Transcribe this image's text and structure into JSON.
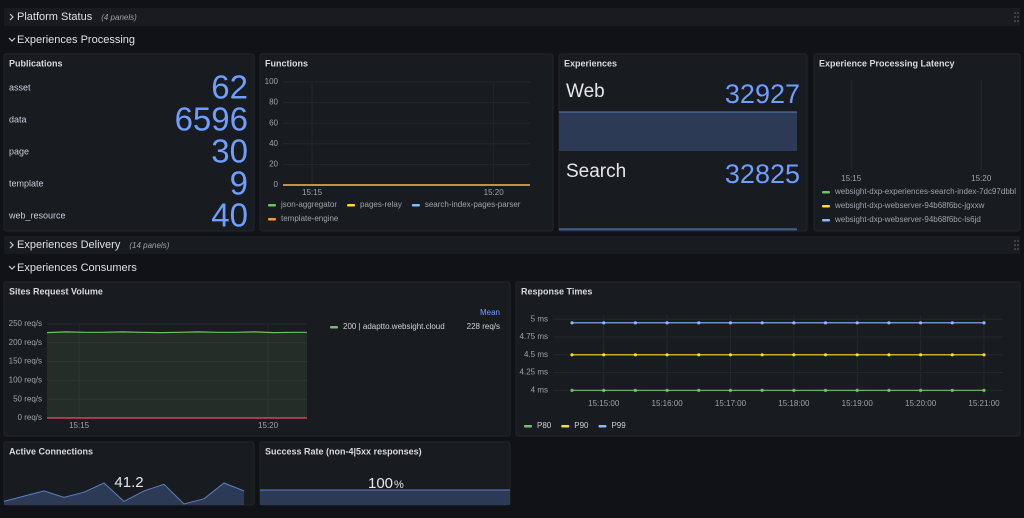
{
  "rows": [
    {
      "title": "Platform Status",
      "note": "(4 panels)"
    },
    {
      "title": "Experiences Processing"
    },
    {
      "title": "Experiences Delivery",
      "note": "(14 panels)"
    },
    {
      "title": "Experiences Consumers"
    }
  ],
  "publications": {
    "title": "Publications",
    "items": [
      {
        "label": "asset",
        "value": 62
      },
      {
        "label": "data",
        "value": 6596
      },
      {
        "label": "page",
        "value": 30
      },
      {
        "label": "template",
        "value": 9
      },
      {
        "label": "web_resource",
        "value": 40
      }
    ]
  },
  "functions": {
    "title": "Functions",
    "type": "line",
    "xlim": [
      14.2,
      21.0
    ],
    "xticks": [
      {
        "value": 15,
        "label": "15:15"
      },
      {
        "value": 20,
        "label": "15:20"
      }
    ],
    "ylim": [
      0,
      100
    ],
    "yticks": [
      0,
      20,
      40,
      60,
      80,
      100
    ],
    "series": [
      {
        "name": "json-aggregator",
        "color": "#73bf69",
        "x": [
          14.2,
          21.0
        ],
        "values": [
          0,
          0
        ]
      },
      {
        "name": "pages-relay",
        "color": "#fade2a",
        "x": [
          14.2,
          21.0
        ],
        "values": [
          0,
          0
        ]
      },
      {
        "name": "search-index-pages-parser",
        "color": "#8ab8ff",
        "x": [
          14.2,
          21.0
        ],
        "values": [
          0,
          0
        ]
      },
      {
        "name": "template-engine",
        "color": "#ff9830",
        "x": [
          14.2,
          21.0
        ],
        "values": [
          0,
          0
        ]
      }
    ]
  },
  "experiences": {
    "title": "Experiences",
    "items": [
      {
        "label": "Web",
        "value": 32927
      },
      {
        "label": "Search",
        "value": 32825
      }
    ]
  },
  "latency": {
    "title": "Experience Processing Latency",
    "xlim": [
      13.8,
      21.3
    ],
    "xticks": [
      {
        "value": 15,
        "label": "15:15"
      },
      {
        "value": 20,
        "label": "15:20"
      }
    ],
    "series": [
      {
        "name": "websight-dxp-experiences-search-index-7dc97dbbl",
        "color": "#73bf69"
      },
      {
        "name": "websight-dxp-webserver-94b68f6bc-jgxxw",
        "color": "#fade2a"
      },
      {
        "name": "websight-dxp-webserver-94b68f6bc-ls6jd",
        "color": "#8ab8ff"
      }
    ]
  },
  "sites": {
    "title": "Sites Request Volume",
    "type": "line",
    "xlim": [
      14.15,
      21.03
    ],
    "xticks": [
      {
        "value": 15,
        "label": "15:15"
      },
      {
        "value": 20,
        "label": "15:20"
      }
    ],
    "ylim": [
      0,
      250
    ],
    "yticks": [
      {
        "value": 0,
        "label": "0 req/s"
      },
      {
        "value": 50,
        "label": "50 req/s"
      },
      {
        "value": 100,
        "label": "100 req/s"
      },
      {
        "value": 150,
        "label": "150 req/s"
      },
      {
        "value": 200,
        "label": "200 req/s"
      },
      {
        "value": 250,
        "label": "250 req/s"
      }
    ],
    "threshold": 0,
    "legend_header": "Mean",
    "series": [
      {
        "name": "200 | adaptto.websight.cloud",
        "color": "#73bf69",
        "mean_label": "228 req/s",
        "x": [
          14.15,
          14.65,
          15.15,
          15.65,
          16.15,
          16.65,
          17.15,
          17.65,
          18.15,
          18.65,
          19.15,
          19.65,
          20.15,
          20.65,
          21.03
        ],
        "values": [
          227,
          229,
          228,
          228,
          229,
          228,
          227,
          228,
          229,
          228,
          228,
          229,
          227,
          228,
          228
        ]
      }
    ]
  },
  "response": {
    "title": "Response Times",
    "type": "line",
    "xlim": [
      14.2,
      21.3
    ],
    "xticks": [
      {
        "value": 15,
        "label": "15:15:00"
      },
      {
        "value": 16,
        "label": "15:16:00"
      },
      {
        "value": 17,
        "label": "15:17:00"
      },
      {
        "value": 18,
        "label": "15:18:00"
      },
      {
        "value": 19,
        "label": "15:19:00"
      },
      {
        "value": 20,
        "label": "15:20:00"
      },
      {
        "value": 21,
        "label": "15:21:00"
      }
    ],
    "ylim": [
      3.92,
      5.06
    ],
    "yticks": [
      {
        "value": 4,
        "label": "4 ms"
      },
      {
        "value": 4.25,
        "label": "4.25 ms"
      },
      {
        "value": 4.5,
        "label": "4.5 ms"
      },
      {
        "value": 4.75,
        "label": "4.75 ms"
      },
      {
        "value": 5,
        "label": "5 ms"
      }
    ],
    "series": [
      {
        "name": "P80",
        "color": "#73bf69",
        "x": [
          14.5,
          15,
          15.5,
          16,
          16.5,
          17,
          17.5,
          18,
          18.5,
          19,
          19.5,
          20,
          20.5,
          21
        ],
        "values": [
          4,
          4,
          4,
          4,
          4,
          4,
          4,
          4,
          4,
          4,
          4,
          4,
          4,
          4
        ]
      },
      {
        "name": "P90",
        "color": "#fade2a",
        "x": [
          14.5,
          15,
          15.5,
          16,
          16.5,
          17,
          17.5,
          18,
          18.5,
          19,
          19.5,
          20,
          20.5,
          21
        ],
        "values": [
          4.5,
          4.5,
          4.5,
          4.5,
          4.5,
          4.5,
          4.5,
          4.5,
          4.5,
          4.5,
          4.5,
          4.5,
          4.5,
          4.5
        ]
      },
      {
        "name": "P99",
        "color": "#8ab8ff",
        "x": [
          14.5,
          15,
          15.5,
          16,
          16.5,
          17,
          17.5,
          18,
          18.5,
          19,
          19.5,
          20,
          20.5,
          21
        ],
        "values": [
          4.95,
          4.95,
          4.95,
          4.95,
          4.95,
          4.95,
          4.95,
          4.95,
          4.95,
          4.95,
          4.95,
          4.95,
          4.95,
          4.95
        ]
      }
    ]
  },
  "active": {
    "title": "Active Connections",
    "value": 41.2,
    "spark": [
      30,
      34,
      38,
      33,
      37,
      44,
      30,
      38,
      43,
      28,
      32,
      44,
      38
    ]
  },
  "success": {
    "title": "Success Rate (non-4|5xx responses)",
    "value": 100,
    "unit": "%",
    "spark": [
      100,
      100,
      100,
      100,
      100,
      100,
      100,
      100
    ]
  }
}
